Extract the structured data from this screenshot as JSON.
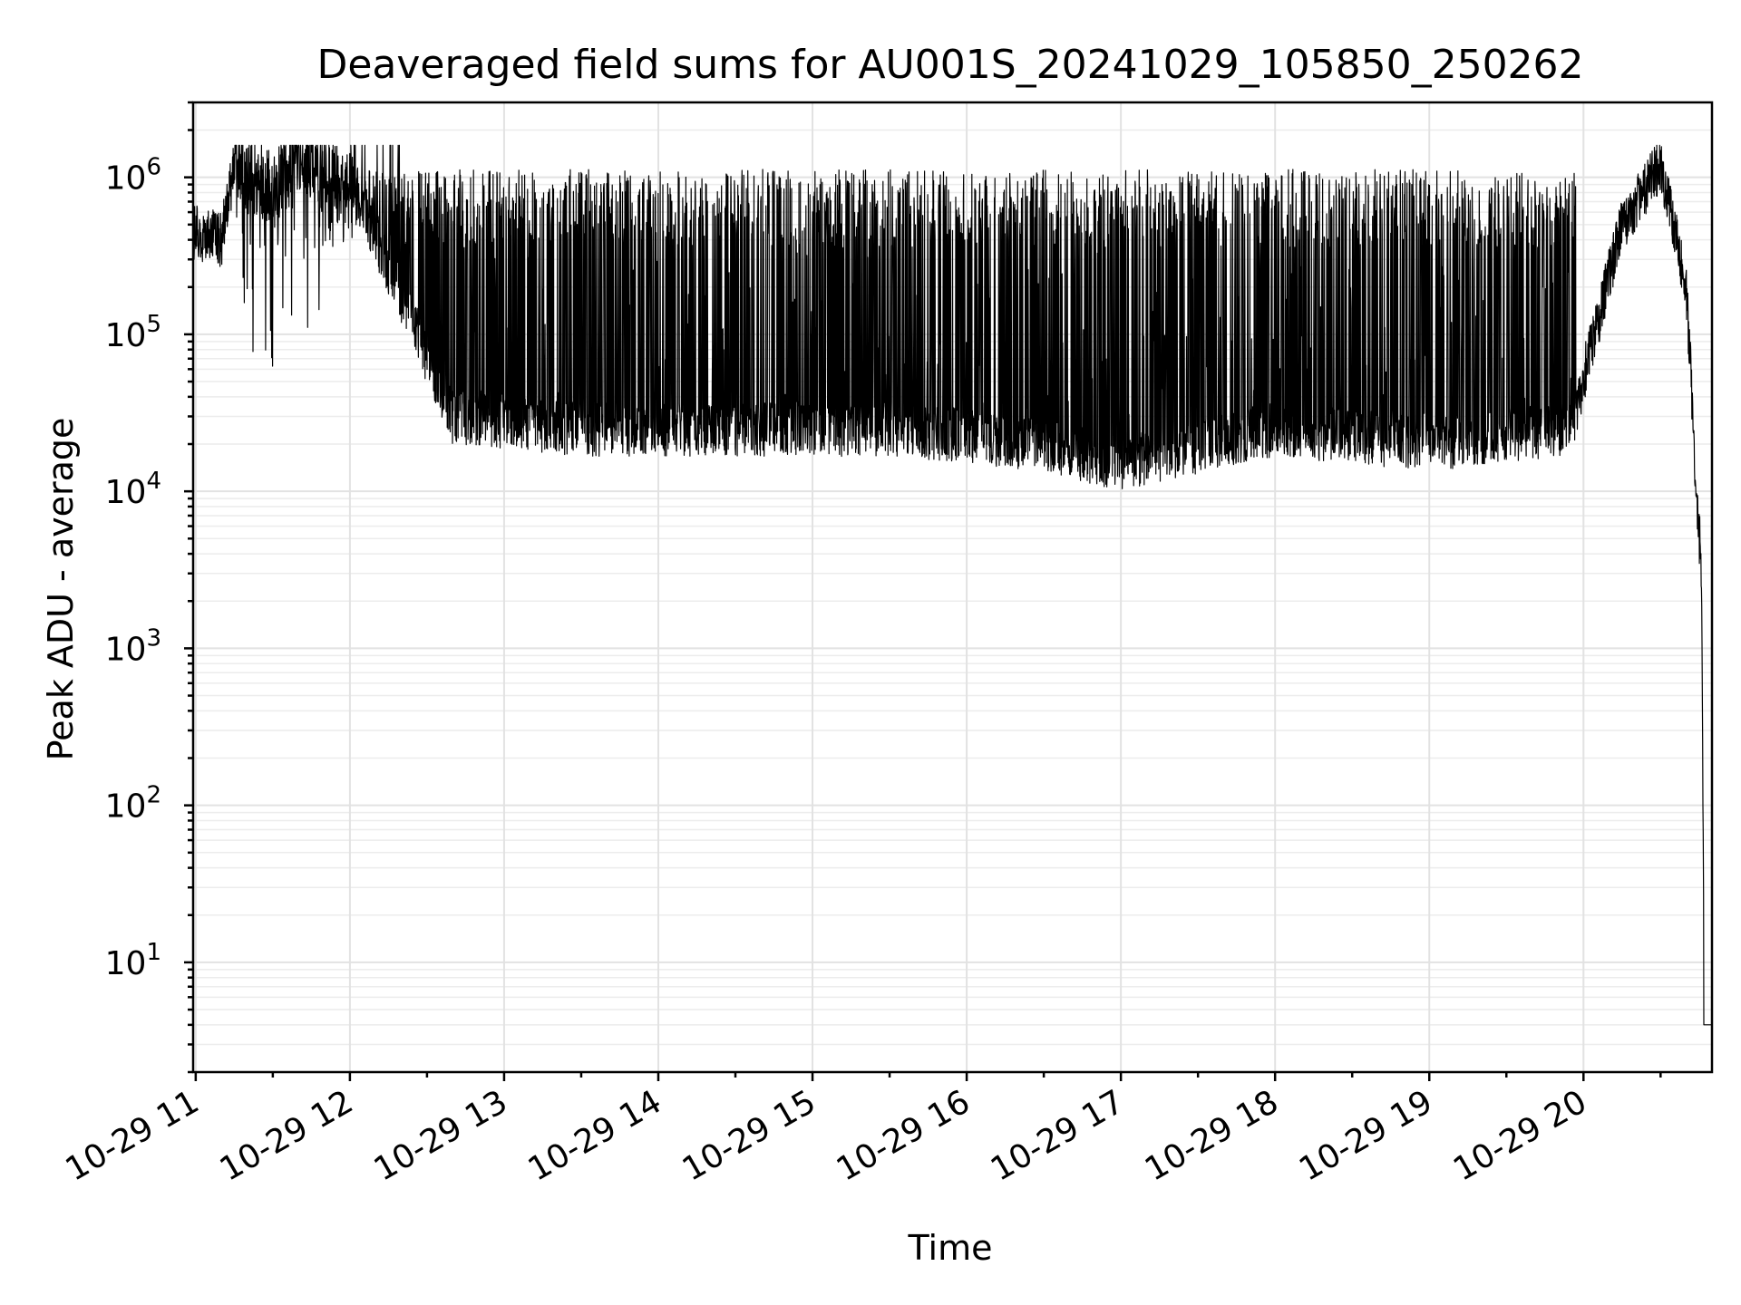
{
  "chart_data": {
    "type": "line",
    "title": "Deaveraged field sums for AU001S_20241029_105850_250262",
    "xlabel": "Time",
    "ylabel": "Peak ADU - average",
    "yscale": "log",
    "ylim": [
      2,
      3000000
    ],
    "xlim": [
      "2024-10-29 10:59",
      "2024-10-29 20:50"
    ],
    "grid": "on (major and minor)",
    "x_tick_labels": [
      "10-29 11",
      "10-29 12",
      "10-29 13",
      "10-29 14",
      "10-29 15",
      "10-29 16",
      "10-29 17",
      "10-29 18",
      "10-29 19",
      "10-29 20"
    ],
    "y_tick_labels": [
      {
        "base": "10",
        "exp": "1"
      },
      {
        "base": "10",
        "exp": "2"
      },
      {
        "base": "10",
        "exp": "3"
      },
      {
        "base": "10",
        "exp": "4"
      },
      {
        "base": "10",
        "exp": "5"
      },
      {
        "base": "10",
        "exp": "6"
      }
    ],
    "series": [
      {
        "color": "#000000",
        "description_points": [
          {
            "x": "2024-10-29 10:59",
            "y": 450000
          },
          {
            "x": "2024-10-29 11:10",
            "y": 400000
          },
          {
            "x": "2024-10-29 11:15",
            "y": 1200000
          },
          {
            "x": "2024-10-29 11:30",
            "y": 800000
          },
          {
            "x": "2024-10-29 11:40",
            "y": 1400000
          },
          {
            "x": "2024-10-29 12:00",
            "y": 1000000
          },
          {
            "x": "2024-10-29 12:40",
            "y": 30000
          },
          {
            "x": "2024-10-29 13:30",
            "y": 25000
          },
          {
            "x": "2024-10-29 14:30",
            "y": 25000
          },
          {
            "x": "2024-10-29 15:30",
            "y": 25000
          },
          {
            "x": "2024-10-29 16:30",
            "y": 20000
          },
          {
            "x": "2024-10-29 17:00",
            "y": 15000
          },
          {
            "x": "2024-10-29 18:00",
            "y": 25000
          },
          {
            "x": "2024-10-29 19:00",
            "y": 20000
          },
          {
            "x": "2024-10-29 19:55",
            "y": 25000
          },
          {
            "x": "2024-10-29 20:15",
            "y": 500000
          },
          {
            "x": "2024-10-29 20:30",
            "y": 1200000
          },
          {
            "x": "2024-10-29 20:40",
            "y": 200000
          },
          {
            "x": "2024-10-29 20:44",
            "y": 10000
          },
          {
            "x": "2024-10-29 20:46",
            "y": 3000
          },
          {
            "x": "2024-10-29 20:47",
            "y": 4
          },
          {
            "x": "2024-10-29 20:50",
            "y": 4
          }
        ]
      }
    ]
  }
}
